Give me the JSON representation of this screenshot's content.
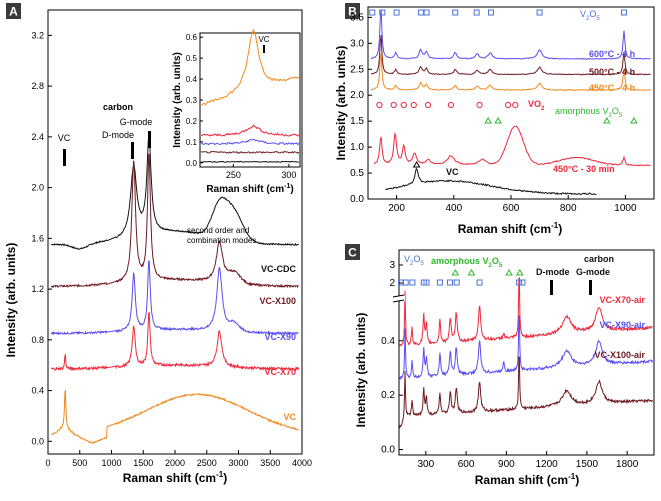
{
  "panels": {
    "A": {
      "letter": "A",
      "xlabel": "Raman shift (cm",
      "xlabel_sup": "-1",
      "xlabel_end": ")",
      "ylabel": "Intensity (arb. units)",
      "xticks": [
        "0",
        "500",
        "1000",
        "1500",
        "2000",
        "2500",
        "3000",
        "3500",
        "4000"
      ],
      "yticks": [
        "0.0",
        "0.4",
        "0.8",
        "1.2",
        "1.6",
        "2.0",
        "2.4",
        "2.8",
        "3.2"
      ],
      "annotations": {
        "vc": "VC",
        "carbon": "carbon",
        "gmode": "G-mode",
        "dmode": "D-mode",
        "second1": "second order and",
        "second2": "combination modes"
      },
      "labels": [
        "VC-CDC",
        "VC-X100",
        "VC-X90",
        "VC-X70",
        "VC"
      ],
      "inset": {
        "xlabel": "Raman shift (cm",
        "xlabel_sup": "-1",
        "xlabel_end": ")",
        "ylabel": "Intensity (arb. units)",
        "xticks": [
          "250",
          "300"
        ],
        "yticks": [
          "0.0",
          "0.1",
          "0.2",
          "0.3",
          "0.4",
          "0.5",
          "0.6"
        ],
        "vc": "VC"
      }
    },
    "B": {
      "letter": "B",
      "xlabel": "Raman shift (cm",
      "xlabel_sup": "-1",
      "xlabel_end": ")",
      "ylabel": "Intensity (arb. units)",
      "xticks": [
        "200",
        "400",
        "600",
        "800",
        "1000"
      ],
      "yticks": [
        "0.0",
        "0.5",
        "1.0",
        "1.5",
        "2.0",
        "2.5",
        "3.0",
        "3.5"
      ],
      "v2o5": "V",
      "v2o5_sub1": "2",
      "v2o5_mid": "O",
      "v2o5_sub2": "5",
      "vo2": "VO",
      "vo2_sub": "2",
      "amorph": "amorphous V",
      "amorph_sub1": "2",
      "amorph_mid": "O",
      "amorph_sub2": "5",
      "labels": [
        "600°C - 4 h",
        "500°C - 4 h",
        "450°C - 4 h",
        "450°C - 30 min"
      ],
      "vc": "VC"
    },
    "C": {
      "letter": "C",
      "xlabel": "Raman shift (cm",
      "xlabel_sup": "-1",
      "xlabel_end": ")",
      "ylabel": "Intensity (arb. units)",
      "xticks": [
        "300",
        "600",
        "900",
        "1200",
        "1500",
        "1800"
      ],
      "yticks_low": [
        "0.0",
        "0.2",
        "0.4"
      ],
      "yticks_high": [
        "2",
        "3"
      ],
      "v2o5": "V",
      "v2o5_sub1": "2",
      "v2o5_mid": "O",
      "v2o5_sub2": "5",
      "amorph": "amorphous V",
      "amorph_sub1": "2",
      "amorph_mid": "O",
      "amorph_sub2": "5",
      "dmode": "D-mode",
      "carbon": "carbon",
      "gmode": "G-mode",
      "labels": [
        "VC-X70-air",
        "VC-X90-air",
        "VC-X100-air"
      ]
    }
  },
  "colors": {
    "black": "#111111",
    "maroon": "#6e1a22",
    "blue": "#5a4ef0",
    "red": "#f0283a",
    "orange": "#f08a1e",
    "marker_blue": "#4a72d8",
    "marker_red": "#f0283a",
    "marker_green": "#2eb82e",
    "letter_bg": "#3a3a3a"
  },
  "chart_data": [
    {
      "panel": "A",
      "type": "line",
      "xlim": [
        0,
        4000
      ],
      "ylim": [
        -0.1,
        3.4
      ],
      "series": [
        {
          "name": "VC-CDC",
          "baseline": 1.55,
          "peaks": [
            [
              1350,
              0.8
            ],
            [
              1590,
              0.95
            ],
            [
              2700,
              0.3
            ],
            [
              2930,
              0.25
            ]
          ]
        },
        {
          "name": "VC-X100",
          "baseline": 1.22,
          "peaks": [
            [
              1350,
              1.0
            ],
            [
              1590,
              1.05
            ],
            [
              2700,
              0.35
            ]
          ]
        },
        {
          "name": "VC-X90",
          "baseline": 0.85,
          "peaks": [
            [
              1350,
              0.5
            ],
            [
              1590,
              0.6
            ],
            [
              2700,
              0.55
            ]
          ]
        },
        {
          "name": "VC-X70",
          "baseline": 0.57,
          "peaks": [
            [
              1350,
              0.35
            ],
            [
              1590,
              0.45
            ],
            [
              2700,
              0.3
            ]
          ]
        },
        {
          "name": "VC",
          "baseline": 0.05,
          "peaks": [
            [
              270,
              0.35
            ],
            [
              2300,
              0.33
            ]
          ]
        }
      ],
      "inset": {
        "xlim": [
          220,
          310
        ],
        "ylim": [
          -0.02,
          0.62
        ]
      }
    },
    {
      "panel": "B",
      "type": "line",
      "xlim": [
        100,
        1100
      ],
      "ylim": [
        0,
        3.7
      ],
      "series": [
        {
          "name": "600°C - 4 h",
          "baseline": 2.7
        },
        {
          "name": "500°C - 4 h",
          "baseline": 2.4
        },
        {
          "name": "450°C - 4 h",
          "baseline": 2.1
        },
        {
          "name": "450°C - 30 min",
          "baseline": 0.65
        },
        {
          "name": "VC",
          "baseline": 0.1
        }
      ]
    },
    {
      "panel": "C",
      "type": "line",
      "xlim": [
        100,
        2000
      ],
      "ylim": [
        -0.02,
        0.55
      ],
      "series": [
        {
          "name": "VC-X70-air",
          "baseline": 0.38
        },
        {
          "name": "VC-X90-air",
          "baseline": 0.26
        },
        {
          "name": "VC-X100-air",
          "baseline": 0.12
        }
      ]
    }
  ]
}
